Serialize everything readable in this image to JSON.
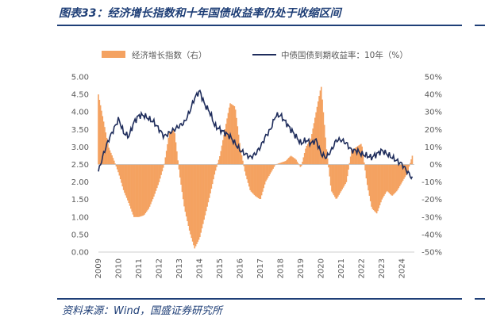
{
  "title": "图表33：经济增长指数和十年国债收益率仍处于收缩区间",
  "source": "资料来源：Wind，国盛证券研究所",
  "colors": {
    "bars": "#F4A261",
    "line": "#1F2D5C",
    "heading": "#1F3F77"
  },
  "chart_data": {
    "type": "bar+line",
    "categories": [
      "2009",
      "2010",
      "2011",
      "2012",
      "2013",
      "2014",
      "2015",
      "2016",
      "2017",
      "2018",
      "2019",
      "2020",
      "2021",
      "2022",
      "2023",
      "2024"
    ],
    "legend_position": "top",
    "y_left": {
      "label": "",
      "ticks": [
        "0.00",
        "0.50",
        "1.00",
        "1.50",
        "2.00",
        "2.50",
        "3.00",
        "3.50",
        "4.00",
        "4.50",
        "5.00"
      ],
      "range": [
        0,
        5
      ]
    },
    "y_right": {
      "label": "",
      "ticks": [
        "-50%",
        "-40%",
        "-30%",
        "-20%",
        "-10%",
        "0%",
        "10%",
        "20%",
        "30%",
        "40%",
        "50%"
      ],
      "range": [
        -50,
        50
      ]
    },
    "series": [
      {
        "name": "经济增长指数（右）",
        "type": "bar",
        "axis": "right",
        "points": [
          [
            2009.0,
            40
          ],
          [
            2009.25,
            25
          ],
          [
            2009.5,
            10
          ],
          [
            2009.75,
            3
          ],
          [
            2010.0,
            -5
          ],
          [
            2010.25,
            -15
          ],
          [
            2010.5,
            -22
          ],
          [
            2010.75,
            -30
          ],
          [
            2011.0,
            -30
          ],
          [
            2011.25,
            -29
          ],
          [
            2011.5,
            -25
          ],
          [
            2011.75,
            -18
          ],
          [
            2012.0,
            -10
          ],
          [
            2012.25,
            0
          ],
          [
            2012.5,
            18
          ],
          [
            2012.75,
            20
          ],
          [
            2013.0,
            -5
          ],
          [
            2013.25,
            -25
          ],
          [
            2013.5,
            -38
          ],
          [
            2013.75,
            -48
          ],
          [
            2014.0,
            -42
          ],
          [
            2014.25,
            -30
          ],
          [
            2014.5,
            -18
          ],
          [
            2014.75,
            -5
          ],
          [
            2015.0,
            5
          ],
          [
            2015.25,
            20
          ],
          [
            2015.5,
            35
          ],
          [
            2015.75,
            33
          ],
          [
            2016.0,
            10
          ],
          [
            2016.25,
            -5
          ],
          [
            2016.5,
            -15
          ],
          [
            2016.75,
            -18
          ],
          [
            2017.0,
            -20
          ],
          [
            2017.25,
            -10
          ],
          [
            2017.5,
            -5
          ],
          [
            2017.75,
            0
          ],
          [
            2018.0,
            1
          ],
          [
            2018.25,
            2
          ],
          [
            2018.5,
            5
          ],
          [
            2018.75,
            3
          ],
          [
            2019.0,
            -2
          ],
          [
            2019.25,
            10
          ],
          [
            2019.5,
            15
          ],
          [
            2019.75,
            30
          ],
          [
            2020.0,
            45
          ],
          [
            2020.25,
            10
          ],
          [
            2020.5,
            -15
          ],
          [
            2020.75,
            -20
          ],
          [
            2021.0,
            -15
          ],
          [
            2021.25,
            -10
          ],
          [
            2021.5,
            8
          ],
          [
            2021.75,
            10
          ],
          [
            2022.0,
            12
          ],
          [
            2022.25,
            -10
          ],
          [
            2022.5,
            -25
          ],
          [
            2022.75,
            -28
          ],
          [
            2023.0,
            -20
          ],
          [
            2023.25,
            -15
          ],
          [
            2023.5,
            -18
          ],
          [
            2023.75,
            -15
          ],
          [
            2024.0,
            -10
          ],
          [
            2024.25,
            -5
          ],
          [
            2024.5,
            5
          ]
        ]
      },
      {
        "name": "中债国债到期收益率：10年（%）",
        "type": "line",
        "axis": "left",
        "points": [
          [
            2009.0,
            2.3
          ],
          [
            2009.25,
            2.8
          ],
          [
            2009.5,
            3.2
          ],
          [
            2009.75,
            3.5
          ],
          [
            2010.0,
            3.8
          ],
          [
            2010.25,
            3.4
          ],
          [
            2010.5,
            3.3
          ],
          [
            2010.75,
            3.7
          ],
          [
            2011.0,
            3.9
          ],
          [
            2011.25,
            3.9
          ],
          [
            2011.5,
            3.8
          ],
          [
            2011.75,
            3.7
          ],
          [
            2012.0,
            3.5
          ],
          [
            2012.25,
            3.3
          ],
          [
            2012.5,
            3.4
          ],
          [
            2012.75,
            3.5
          ],
          [
            2013.0,
            3.6
          ],
          [
            2013.25,
            3.7
          ],
          [
            2013.5,
            4.0
          ],
          [
            2013.75,
            4.4
          ],
          [
            2014.0,
            4.6
          ],
          [
            2014.25,
            4.2
          ],
          [
            2014.5,
            4.0
          ],
          [
            2014.75,
            3.6
          ],
          [
            2015.0,
            3.5
          ],
          [
            2015.25,
            3.4
          ],
          [
            2015.5,
            3.3
          ],
          [
            2015.75,
            3.1
          ],
          [
            2016.0,
            2.9
          ],
          [
            2016.25,
            2.8
          ],
          [
            2016.5,
            2.7
          ],
          [
            2016.75,
            2.8
          ],
          [
            2017.0,
            3.0
          ],
          [
            2017.25,
            3.3
          ],
          [
            2017.5,
            3.5
          ],
          [
            2017.75,
            3.9
          ],
          [
            2018.0,
            3.9
          ],
          [
            2018.25,
            3.7
          ],
          [
            2018.5,
            3.5
          ],
          [
            2018.75,
            3.3
          ],
          [
            2019.0,
            3.1
          ],
          [
            2019.25,
            3.2
          ],
          [
            2019.5,
            3.1
          ],
          [
            2019.75,
            3.2
          ],
          [
            2020.0,
            2.8
          ],
          [
            2020.25,
            2.7
          ],
          [
            2020.5,
            2.9
          ],
          [
            2020.75,
            3.2
          ],
          [
            2021.0,
            3.2
          ],
          [
            2021.25,
            3.1
          ],
          [
            2021.5,
            2.9
          ],
          [
            2021.75,
            2.9
          ],
          [
            2022.0,
            2.8
          ],
          [
            2022.25,
            2.75
          ],
          [
            2022.5,
            2.7
          ],
          [
            2022.75,
            2.8
          ],
          [
            2023.0,
            2.9
          ],
          [
            2023.25,
            2.8
          ],
          [
            2023.5,
            2.7
          ],
          [
            2023.75,
            2.6
          ],
          [
            2024.0,
            2.5
          ],
          [
            2024.25,
            2.3
          ],
          [
            2024.5,
            2.1
          ]
        ]
      }
    ]
  }
}
